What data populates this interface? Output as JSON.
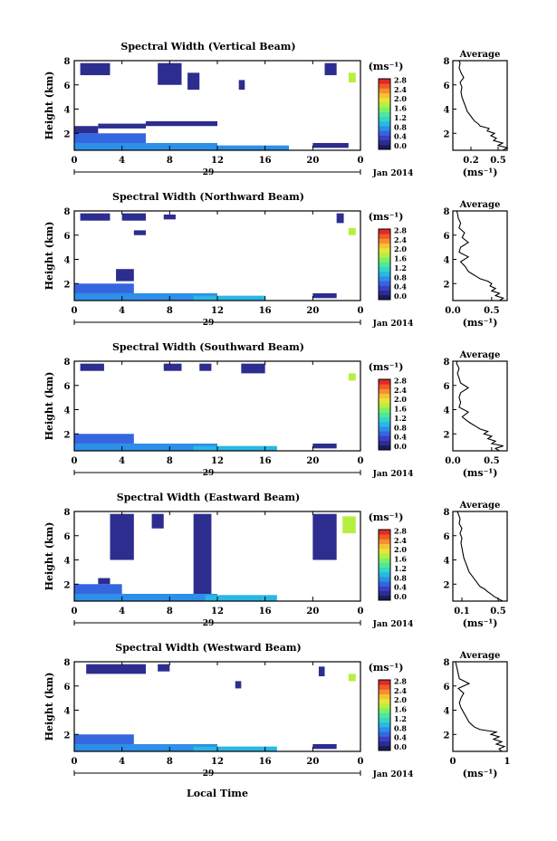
{
  "figure": {
    "x_axis_title": "Local Time",
    "day_label": "29",
    "date_label": "Jan 2014",
    "y_axis_label": "Height (km)",
    "colorbar_unit": "(ms⁻¹)",
    "average_title": "Average",
    "average_unit": "(ms⁻¹)"
  },
  "colorbar": {
    "ticks": [
      "0.0",
      "0.4",
      "0.8",
      "1.2",
      "1.6",
      "2.0",
      "2.4",
      "2.8"
    ],
    "colors": [
      "#1a1a5e",
      "#2d2d8f",
      "#3a3fc4",
      "#3466e0",
      "#2d8fe8",
      "#2ab7e3",
      "#35d6c8",
      "#4ee89a",
      "#7cf06a",
      "#b5f040",
      "#e6e63a",
      "#f7c233",
      "#f78f2e",
      "#f05a2a",
      "#e02a26"
    ]
  },
  "chart_data": [
    {
      "type": "heatmap",
      "title": "Spectral Width (Vertical Beam)",
      "xlabel": "Local Time",
      "ylabel": "Height (km)",
      "xlim": [
        0,
        24
      ],
      "ylim": [
        0.6,
        8
      ],
      "x_ticks": [
        "0",
        "4",
        "8",
        "12",
        "16",
        "20",
        "0"
      ],
      "y_ticks": [
        "2",
        "4",
        "6",
        "8"
      ],
      "clim": [
        0,
        2.8
      ],
      "units": "ms⁻¹",
      "average": {
        "xlim": [
          0,
          0.6
        ],
        "x_ticks": [
          "0.2",
          "0.5"
        ],
        "y_ticks": [
          "2",
          "4",
          "6",
          "8"
        ],
        "profile": [
          [
            0.6,
            0.55
          ],
          [
            0.8,
            0.6
          ],
          [
            1.0,
            0.5
          ],
          [
            1.2,
            0.55
          ],
          [
            1.4,
            0.45
          ],
          [
            1.6,
            0.48
          ],
          [
            1.8,
            0.42
          ],
          [
            2.0,
            0.46
          ],
          [
            2.2,
            0.38
          ],
          [
            2.4,
            0.4
          ],
          [
            2.6,
            0.3
          ],
          [
            2.8,
            0.28
          ],
          [
            3.0,
            0.24
          ],
          [
            3.4,
            0.2
          ],
          [
            3.8,
            0.16
          ],
          [
            4.2,
            0.14
          ],
          [
            4.6,
            0.12
          ],
          [
            5.0,
            0.1
          ],
          [
            5.4,
            0.09
          ],
          [
            5.8,
            0.1
          ],
          [
            6.2,
            0.08
          ],
          [
            6.6,
            0.12
          ],
          [
            7.0,
            0.09
          ],
          [
            7.4,
            0.07
          ],
          [
            7.8,
            0.08
          ],
          [
            8.0,
            0.07
          ]
        ]
      },
      "blocks": [
        {
          "t0": 0,
          "t1": 12,
          "h0": 0.6,
          "h1": 1.2,
          "v": 0.8
        },
        {
          "t0": 0,
          "t1": 6,
          "h0": 1.2,
          "h1": 2.0,
          "v": 0.6
        },
        {
          "t0": 10,
          "t1": 18,
          "h0": 0.6,
          "h1": 1.0,
          "v": 0.9
        },
        {
          "t0": 0,
          "t1": 2,
          "h0": 2.0,
          "h1": 2.6,
          "v": 0.3
        },
        {
          "t0": 2,
          "t1": 6,
          "h0": 2.4,
          "h1": 2.8,
          "v": 0.2
        },
        {
          "t0": 6,
          "t1": 12,
          "h0": 2.6,
          "h1": 3.0,
          "v": 0.2
        },
        {
          "t0": 20,
          "t1": 23,
          "h0": 0.8,
          "h1": 1.2,
          "v": 0.3
        },
        {
          "t0": 0.5,
          "t1": 3,
          "h0": 6.8,
          "h1": 7.8,
          "v": 0.2
        },
        {
          "t0": 7,
          "t1": 9,
          "h0": 6.0,
          "h1": 7.8,
          "v": 0.2
        },
        {
          "t0": 9.5,
          "t1": 10.5,
          "h0": 5.6,
          "h1": 7.0,
          "v": 0.2
        },
        {
          "t0": 13.8,
          "t1": 14.3,
          "h0": 5.6,
          "h1": 6.4,
          "v": 0.2
        },
        {
          "t0": 21,
          "t1": 22,
          "h0": 6.8,
          "h1": 7.8,
          "v": 0.2
        },
        {
          "t0": 23,
          "t1": 23.6,
          "h0": 6.2,
          "h1": 7.0,
          "v": 1.8
        }
      ]
    },
    {
      "type": "heatmap",
      "title": "Spectral Width (Northward Beam)",
      "xlabel": "Local Time",
      "ylabel": "Height (km)",
      "xlim": [
        0,
        24
      ],
      "ylim": [
        0.6,
        8
      ],
      "x_ticks": [
        "0",
        "4",
        "8",
        "12",
        "16",
        "20",
        "0"
      ],
      "y_ticks": [
        "2",
        "4",
        "6",
        "8"
      ],
      "clim": [
        0,
        2.8
      ],
      "units": "ms⁻¹",
      "average": {
        "xlim": [
          0,
          0.7
        ],
        "x_ticks": [
          "0.0",
          "0.5"
        ],
        "y_ticks": [
          "2",
          "4",
          "6",
          "8"
        ],
        "profile": [
          [
            0.6,
            0.6
          ],
          [
            0.8,
            0.65
          ],
          [
            1.0,
            0.55
          ],
          [
            1.2,
            0.6
          ],
          [
            1.4,
            0.5
          ],
          [
            1.6,
            0.55
          ],
          [
            1.8,
            0.48
          ],
          [
            2.0,
            0.5
          ],
          [
            2.2,
            0.45
          ],
          [
            2.4,
            0.35
          ],
          [
            2.6,
            0.3
          ],
          [
            2.8,
            0.25
          ],
          [
            3.0,
            0.2
          ],
          [
            3.4,
            0.16
          ],
          [
            3.8,
            0.1
          ],
          [
            4.2,
            0.2
          ],
          [
            4.6,
            0.08
          ],
          [
            5.0,
            0.1
          ],
          [
            5.4,
            0.2
          ],
          [
            5.8,
            0.12
          ],
          [
            6.2,
            0.15
          ],
          [
            6.6,
            0.08
          ],
          [
            7.0,
            0.1
          ],
          [
            7.4,
            0.07
          ],
          [
            7.8,
            0.06
          ],
          [
            8.0,
            0.05
          ]
        ]
      },
      "blocks": [
        {
          "t0": 0,
          "t1": 12,
          "h0": 0.6,
          "h1": 1.2,
          "v": 0.8
        },
        {
          "t0": 0,
          "t1": 5,
          "h0": 1.2,
          "h1": 2.0,
          "v": 0.6
        },
        {
          "t0": 10,
          "t1": 16,
          "h0": 0.6,
          "h1": 1.0,
          "v": 1.0
        },
        {
          "t0": 3.5,
          "t1": 5,
          "h0": 2.2,
          "h1": 3.2,
          "v": 0.2
        },
        {
          "t0": 20,
          "t1": 22,
          "h0": 0.8,
          "h1": 1.2,
          "v": 0.3
        },
        {
          "t0": 0.5,
          "t1": 3,
          "h0": 7.2,
          "h1": 7.8,
          "v": 0.2
        },
        {
          "t0": 4,
          "t1": 6,
          "h0": 7.2,
          "h1": 7.8,
          "v": 0.2
        },
        {
          "t0": 7.5,
          "t1": 8.5,
          "h0": 7.3,
          "h1": 7.7,
          "v": 0.2
        },
        {
          "t0": 5,
          "t1": 6,
          "h0": 6.0,
          "h1": 6.4,
          "v": 0.2
        },
        {
          "t0": 22,
          "t1": 22.6,
          "h0": 7.0,
          "h1": 7.8,
          "v": 0.2
        },
        {
          "t0": 23,
          "t1": 23.6,
          "h0": 6.0,
          "h1": 6.6,
          "v": 1.8
        }
      ]
    },
    {
      "type": "heatmap",
      "title": "Spectral Width (Southward Beam)",
      "xlabel": "Local Time",
      "ylabel": "Height (km)",
      "xlim": [
        0,
        24
      ],
      "ylim": [
        0.6,
        8
      ],
      "x_ticks": [
        "0",
        "4",
        "8",
        "12",
        "16",
        "20",
        "0"
      ],
      "y_ticks": [
        "2",
        "4",
        "6",
        "8"
      ],
      "clim": [
        0,
        2.8
      ],
      "units": "ms⁻¹",
      "average": {
        "xlim": [
          0,
          0.7
        ],
        "x_ticks": [
          "0.0",
          "0.5"
        ],
        "y_ticks": [
          "2",
          "4",
          "6",
          "8"
        ],
        "profile": [
          [
            0.6,
            0.6
          ],
          [
            0.8,
            0.55
          ],
          [
            1.0,
            0.65
          ],
          [
            1.2,
            0.5
          ],
          [
            1.4,
            0.55
          ],
          [
            1.6,
            0.45
          ],
          [
            1.8,
            0.5
          ],
          [
            2.0,
            0.4
          ],
          [
            2.2,
            0.45
          ],
          [
            2.4,
            0.35
          ],
          [
            2.6,
            0.3
          ],
          [
            2.8,
            0.25
          ],
          [
            3.0,
            0.2
          ],
          [
            3.4,
            0.12
          ],
          [
            3.8,
            0.2
          ],
          [
            4.2,
            0.08
          ],
          [
            4.6,
            0.1
          ],
          [
            5.0,
            0.08
          ],
          [
            5.4,
            0.1
          ],
          [
            5.8,
            0.2
          ],
          [
            6.2,
            0.1
          ],
          [
            6.6,
            0.08
          ],
          [
            7.0,
            0.06
          ],
          [
            7.4,
            0.08
          ],
          [
            7.8,
            0.05
          ],
          [
            8.0,
            0.05
          ]
        ]
      },
      "blocks": [
        {
          "t0": 0,
          "t1": 12,
          "h0": 0.6,
          "h1": 1.2,
          "v": 0.8
        },
        {
          "t0": 0,
          "t1": 5,
          "h0": 1.2,
          "h1": 2.0,
          "v": 0.6
        },
        {
          "t0": 10,
          "t1": 17,
          "h0": 0.6,
          "h1": 1.0,
          "v": 1.0
        },
        {
          "t0": 20,
          "t1": 22,
          "h0": 0.8,
          "h1": 1.2,
          "v": 0.3
        },
        {
          "t0": 0.5,
          "t1": 2.5,
          "h0": 7.2,
          "h1": 7.8,
          "v": 0.2
        },
        {
          "t0": 7.5,
          "t1": 9,
          "h0": 7.2,
          "h1": 7.8,
          "v": 0.2
        },
        {
          "t0": 10.5,
          "t1": 11.5,
          "h0": 7.2,
          "h1": 7.8,
          "v": 0.2
        },
        {
          "t0": 14,
          "t1": 16,
          "h0": 7.0,
          "h1": 7.8,
          "v": 0.2
        },
        {
          "t0": 23,
          "t1": 23.6,
          "h0": 6.4,
          "h1": 7.0,
          "v": 1.8
        }
      ]
    },
    {
      "type": "heatmap",
      "title": "Spectral Width (Eastward Beam)",
      "xlabel": "Local Time",
      "ylabel": "Height (km)",
      "xlim": [
        0,
        24
      ],
      "ylim": [
        0.6,
        8
      ],
      "x_ticks": [
        "0",
        "4",
        "8",
        "12",
        "16",
        "20",
        "0"
      ],
      "y_ticks": [
        "2",
        "4",
        "6",
        "8"
      ],
      "clim": [
        0,
        2.8
      ],
      "units": "ms⁻¹",
      "average": {
        "xlim": [
          0,
          0.6
        ],
        "x_ticks": [
          "0.1",
          "0.5"
        ],
        "y_ticks": [
          "2",
          "4",
          "6",
          "8"
        ],
        "profile": [
          [
            0.6,
            0.55
          ],
          [
            0.8,
            0.5
          ],
          [
            1.0,
            0.45
          ],
          [
            1.2,
            0.42
          ],
          [
            1.4,
            0.38
          ],
          [
            1.6,
            0.35
          ],
          [
            1.8,
            0.3
          ],
          [
            2.0,
            0.28
          ],
          [
            2.2,
            0.26
          ],
          [
            2.4,
            0.24
          ],
          [
            2.6,
            0.22
          ],
          [
            2.8,
            0.2
          ],
          [
            3.0,
            0.18
          ],
          [
            3.4,
            0.16
          ],
          [
            3.8,
            0.14
          ],
          [
            4.2,
            0.12
          ],
          [
            4.6,
            0.11
          ],
          [
            5.0,
            0.1
          ],
          [
            5.4,
            0.09
          ],
          [
            5.8,
            0.1
          ],
          [
            6.2,
            0.08
          ],
          [
            6.6,
            0.1
          ],
          [
            7.0,
            0.07
          ],
          [
            7.4,
            0.08
          ],
          [
            7.8,
            0.06
          ],
          [
            8.0,
            0.05
          ]
        ]
      },
      "blocks": [
        {
          "t0": 0,
          "t1": 12,
          "h0": 0.6,
          "h1": 1.2,
          "v": 0.8
        },
        {
          "t0": 0,
          "t1": 4,
          "h0": 1.2,
          "h1": 2.0,
          "v": 0.6
        },
        {
          "t0": 11,
          "t1": 17,
          "h0": 0.6,
          "h1": 1.1,
          "v": 1.0
        },
        {
          "t0": 3,
          "t1": 5,
          "h0": 4.0,
          "h1": 7.8,
          "v": 0.2
        },
        {
          "t0": 10,
          "t1": 11.5,
          "h0": 1.2,
          "h1": 7.8,
          "v": 0.2
        },
        {
          "t0": 6.5,
          "t1": 7.5,
          "h0": 6.6,
          "h1": 7.8,
          "v": 0.2
        },
        {
          "t0": 20,
          "t1": 22,
          "h0": 4.0,
          "h1": 7.8,
          "v": 0.2
        },
        {
          "t0": 22.5,
          "t1": 23.6,
          "h0": 6.2,
          "h1": 7.6,
          "v": 1.8
        },
        {
          "t0": 2,
          "t1": 3,
          "h0": 2.0,
          "h1": 2.5,
          "v": 0.2
        }
      ]
    },
    {
      "type": "heatmap",
      "title": "Spectral Width (Westward Beam)",
      "xlabel": "Local Time",
      "ylabel": "Height (km)",
      "xlim": [
        0,
        24
      ],
      "ylim": [
        0.6,
        8
      ],
      "x_ticks": [
        "0",
        "4",
        "8",
        "12",
        "16",
        "20",
        "0"
      ],
      "y_ticks": [
        "2",
        "4",
        "6",
        "8"
      ],
      "clim": [
        0,
        2.8
      ],
      "units": "ms⁻¹",
      "average": {
        "xlim": [
          0,
          1
        ],
        "x_ticks": [
          "0",
          "1"
        ],
        "y_ticks": [
          "2",
          "4",
          "6",
          "8"
        ],
        "profile": [
          [
            0.6,
            0.9
          ],
          [
            0.8,
            0.85
          ],
          [
            1.0,
            0.95
          ],
          [
            1.2,
            0.8
          ],
          [
            1.4,
            0.9
          ],
          [
            1.6,
            0.75
          ],
          [
            1.8,
            0.85
          ],
          [
            2.0,
            0.7
          ],
          [
            2.2,
            0.8
          ],
          [
            2.4,
            0.5
          ],
          [
            2.6,
            0.4
          ],
          [
            2.8,
            0.35
          ],
          [
            3.0,
            0.3
          ],
          [
            3.4,
            0.25
          ],
          [
            3.8,
            0.2
          ],
          [
            4.2,
            0.15
          ],
          [
            4.6,
            0.12
          ],
          [
            5.0,
            0.15
          ],
          [
            5.4,
            0.2
          ],
          [
            5.8,
            0.1
          ],
          [
            6.2,
            0.3
          ],
          [
            6.6,
            0.12
          ],
          [
            7.0,
            0.1
          ],
          [
            7.4,
            0.08
          ],
          [
            7.8,
            0.06
          ],
          [
            8.0,
            0.05
          ]
        ]
      },
      "blocks": [
        {
          "t0": 0,
          "t1": 12,
          "h0": 0.6,
          "h1": 1.2,
          "v": 0.8
        },
        {
          "t0": 0,
          "t1": 5,
          "h0": 1.2,
          "h1": 2.0,
          "v": 0.6
        },
        {
          "t0": 10,
          "t1": 17,
          "h0": 0.6,
          "h1": 1.0,
          "v": 1.0
        },
        {
          "t0": 20,
          "t1": 22,
          "h0": 0.8,
          "h1": 1.2,
          "v": 0.3
        },
        {
          "t0": 1,
          "t1": 6,
          "h0": 7.0,
          "h1": 7.8,
          "v": 0.2
        },
        {
          "t0": 7,
          "t1": 8,
          "h0": 7.2,
          "h1": 7.8,
          "v": 0.2
        },
        {
          "t0": 13.5,
          "t1": 14,
          "h0": 5.8,
          "h1": 6.4,
          "v": 0.2
        },
        {
          "t0": 20.5,
          "t1": 21,
          "h0": 6.8,
          "h1": 7.6,
          "v": 0.2
        },
        {
          "t0": 23,
          "t1": 23.6,
          "h0": 6.4,
          "h1": 7.0,
          "v": 1.8
        }
      ]
    }
  ]
}
